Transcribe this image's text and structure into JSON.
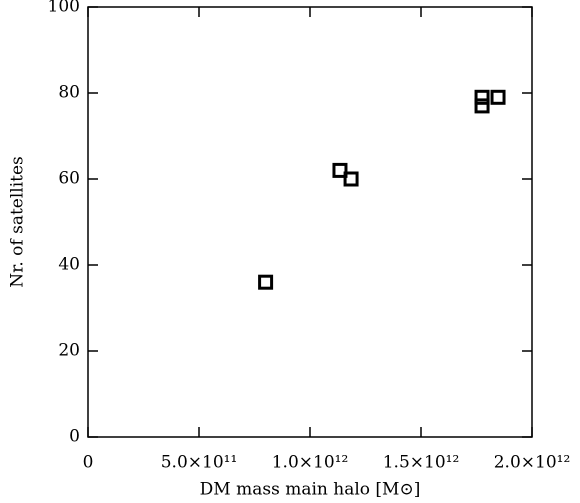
{
  "chart_data": {
    "type": "scatter",
    "x_label": "DM mass main halo [M⊙]",
    "y_label": "Nr. of satellites",
    "x": [
      800000000000.0,
      1135000000000.0,
      1185000000000.0,
      1775000000000.0,
      1775000000000.0,
      1847000000000.0
    ],
    "values": [
      36,
      62,
      60,
      77,
      79,
      79
    ],
    "color": "#000000",
    "marker": "square",
    "xlim": [
      0,
      2000000000000.0
    ],
    "ylim": [
      0,
      100
    ],
    "xticks": [
      0,
      {
        "value": 500000000000.0,
        "label": "5.0×10¹¹"
      },
      {
        "value": 1000000000000.0,
        "label": "1.0×10¹²"
      },
      {
        "value": 1500000000000.0,
        "label": "1.5×10¹²"
      },
      {
        "value": 2000000000000.0,
        "label": "2.0×10¹²"
      }
    ],
    "yticks": [
      0,
      20,
      40,
      60,
      80,
      100
    ]
  }
}
